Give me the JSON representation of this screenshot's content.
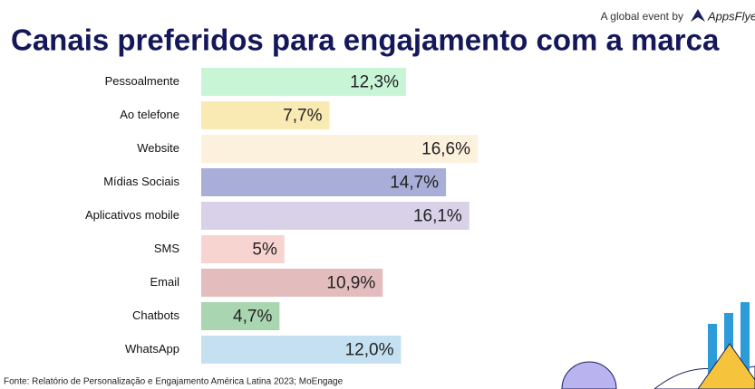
{
  "header": {
    "tagline": "A global event by",
    "brand": "AppsFlyer"
  },
  "source": "Fonte: Relatório de Personalização e Engajamento América Latina 2023; MoEngage",
  "chart_data": {
    "type": "bar",
    "orientation": "horizontal",
    "title": "Canais preferidos para engajamento com a marca",
    "categories": [
      "Pessoalmente",
      "Ao telefone",
      "Website",
      "Mídias Sociais",
      "Aplicativos mobile",
      "SMS",
      "Email",
      "Chatbots",
      "WhatsApp"
    ],
    "values": [
      12.3,
      7.7,
      16.6,
      14.7,
      16.1,
      5,
      10.9,
      4.7,
      12.0
    ],
    "value_labels": [
      "12,3%",
      "7,7%",
      "16,6%",
      "14,7%",
      "16,1%",
      "5%",
      "10,9%",
      "4,7%",
      "12,0%"
    ],
    "colors": [
      "#c9f5d7",
      "#f9e9b3",
      "#fcf1dd",
      "#a9aed8",
      "#d9d1e8",
      "#f8d4d1",
      "#e3bdbd",
      "#a9d5b1",
      "#c5e1f1"
    ]
  }
}
